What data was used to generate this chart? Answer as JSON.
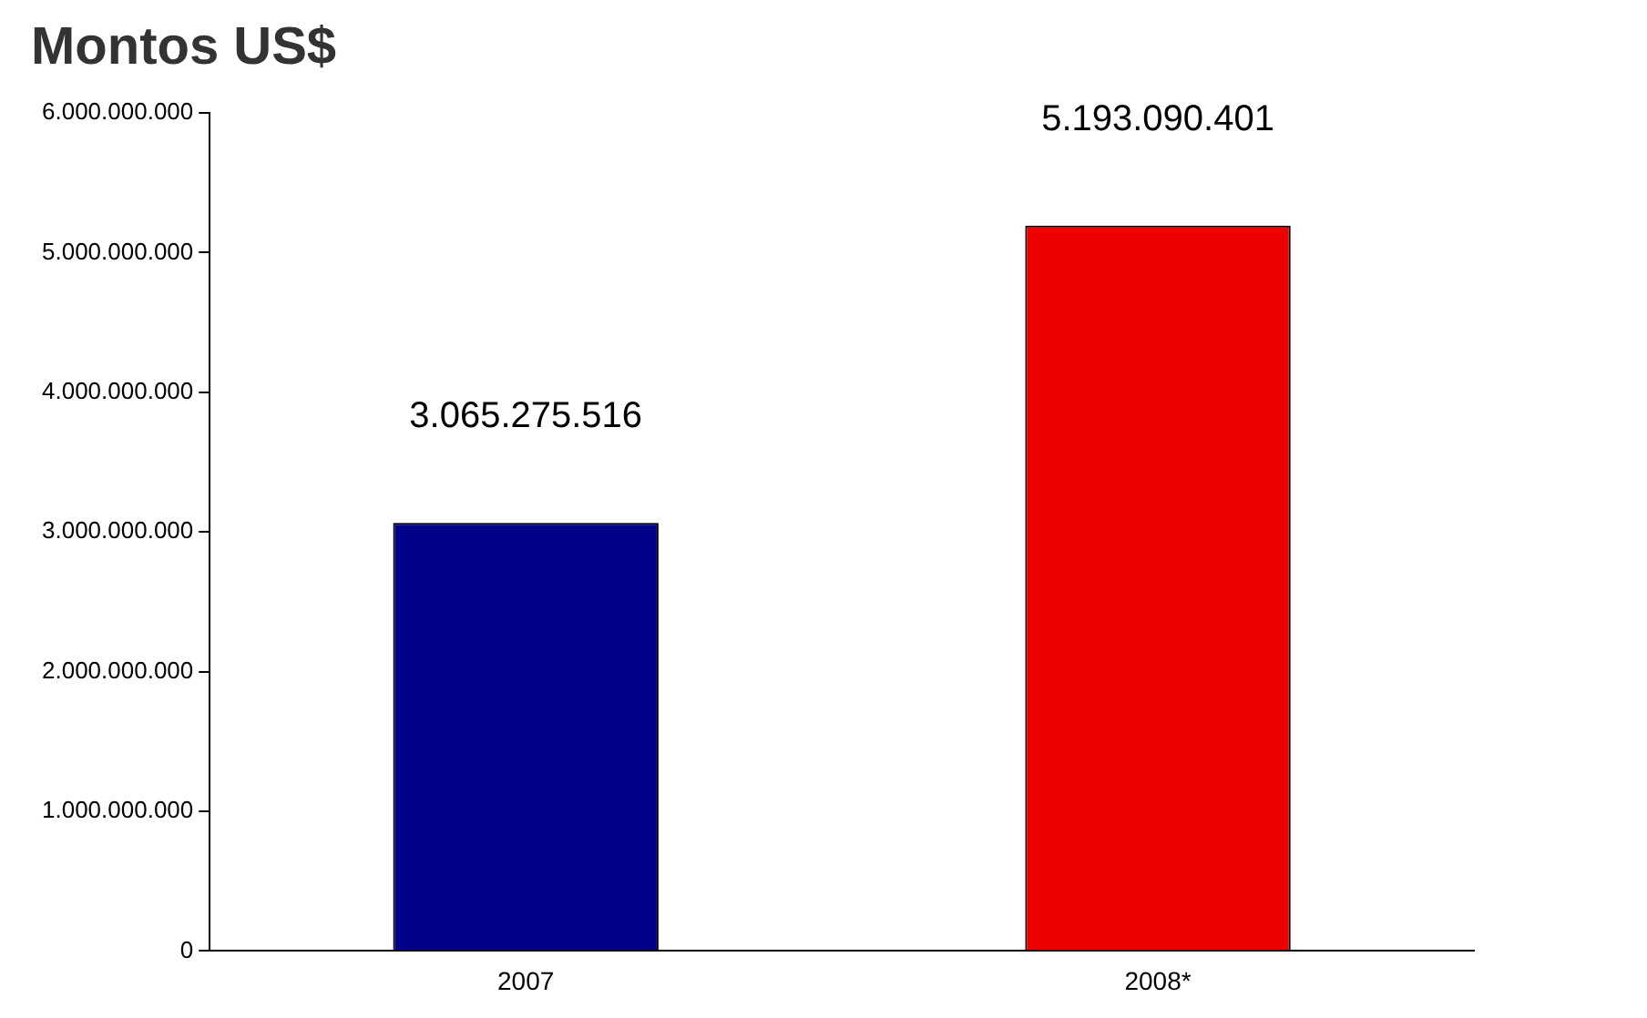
{
  "chart_data": {
    "type": "bar",
    "title": "Montos US$",
    "categories": [
      "2007",
      "2008*"
    ],
    "values": [
      3065275516,
      5193090401
    ],
    "colors": [
      "#00008b",
      "#ee0000"
    ],
    "value_labels": [
      "3.065.275.516",
      "5.193.090.401"
    ],
    "ylim": [
      0,
      6000000000
    ],
    "yticks": [
      0,
      {
        "value": 1000000000,
        "label": "1.000.000.000"
      },
      {
        "value": 2000000000,
        "label": "2.000.000.000"
      },
      {
        "value": 3000000000,
        "label": "3.000.000.000"
      },
      {
        "value": 4000000000,
        "label": "4.000.000.000"
      },
      {
        "value": 5000000000,
        "label": "5.000.000.000"
      },
      {
        "value": 6000000000,
        "label": "6.000.000.000"
      }
    ],
    "grid": false,
    "legend": false
  }
}
